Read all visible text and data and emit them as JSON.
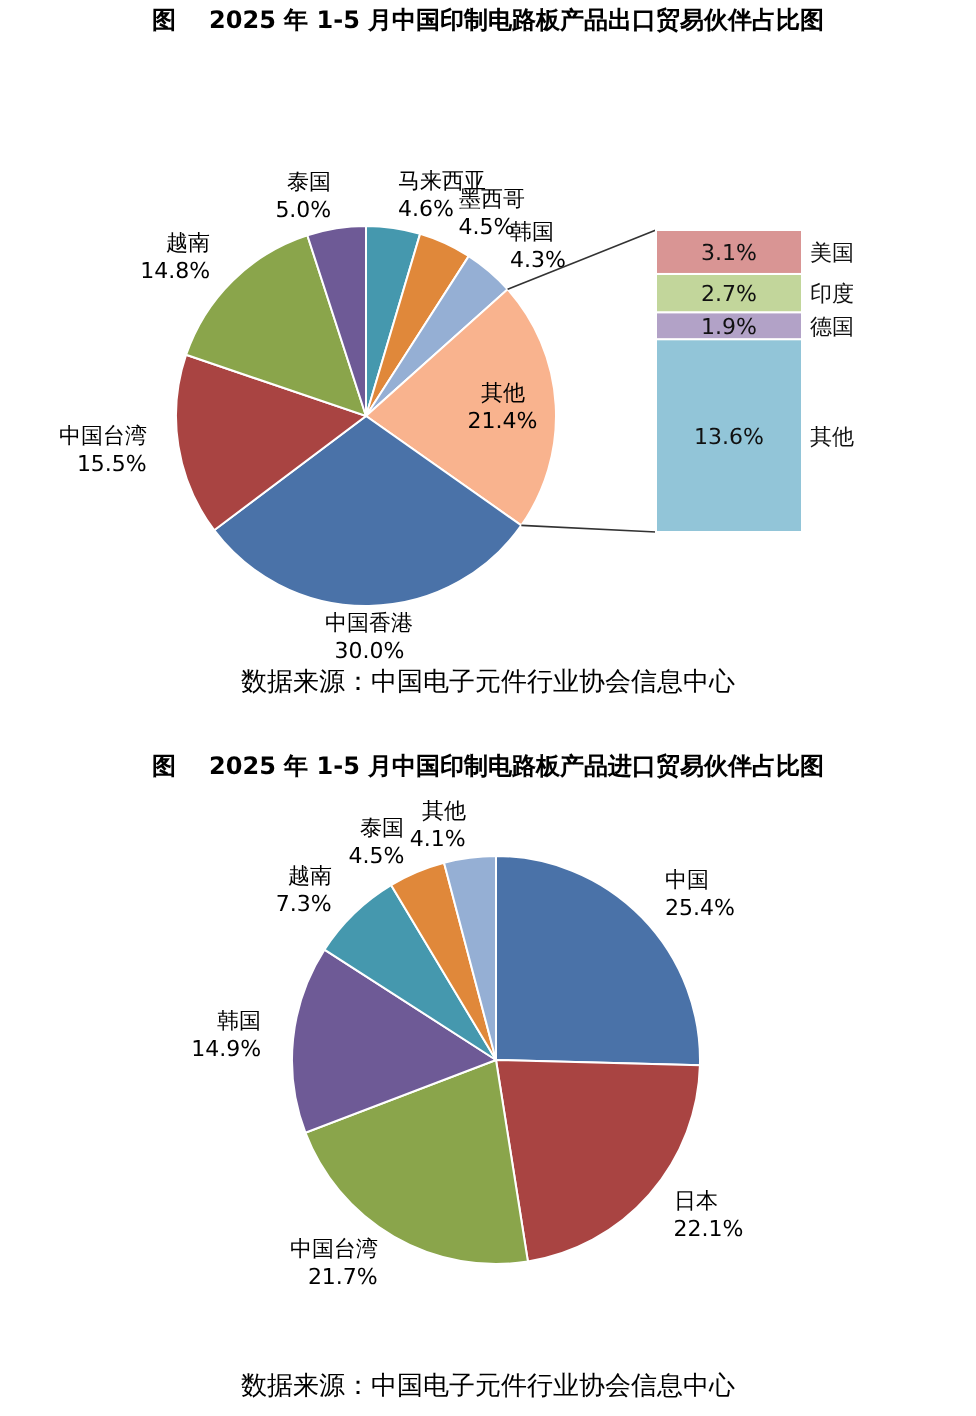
{
  "chart_data": [
    {
      "type": "pie",
      "title": "图    2025 年 1-5 月中国印制电路板产品出口贸易伙伴占比图",
      "annotations": [
        "数据来源：中国电子元件行业协会信息中心"
      ],
      "categories": [
        "马来西亚",
        "墨西哥",
        "韩国",
        "其他",
        "中国香港",
        "中国台湾",
        "越南",
        "泰国"
      ],
      "values": [
        4.6,
        4.5,
        4.3,
        21.4,
        30.0,
        15.5,
        14.8,
        5.0
      ],
      "value_labels": [
        "4.6%",
        "4.5%",
        "4.3%",
        "21.4%",
        "30.0%",
        "15.5%",
        "14.8%",
        "5.0%"
      ],
      "colors": [
        "#4598ae",
        "#e0883a",
        "#95afd4",
        "#f9b38e",
        "#4a72a8",
        "#a94442",
        "#8aa54b",
        "#6e5a96"
      ]
    },
    {
      "type": "bar",
      "stacked": true,
      "categories": [
        null
      ],
      "series": [
        {
          "name": "其他",
          "color": "#92c5d8",
          "values": [
            13.6
          ],
          "value_labels": [
            "13.6%"
          ]
        },
        {
          "name": "德国",
          "color": "#b2a2c7",
          "values": [
            1.9
          ],
          "value_labels": [
            "1.9%"
          ]
        },
        {
          "name": "印度",
          "color": "#c2d69b",
          "values": [
            2.7
          ],
          "value_labels": [
            "2.7%"
          ]
        },
        {
          "name": "美国",
          "color": "#d99594",
          "values": [
            3.1
          ],
          "value_labels": [
            "3.1%"
          ]
        }
      ]
    },
    {
      "type": "pie",
      "title": "图    2025 年 1-5 月中国印制电路板产品进口贸易伙伴占比图",
      "annotations": [
        "数据来源：中国电子元件行业协会信息中心"
      ],
      "categories": [
        "中国",
        "日本",
        "中国台湾",
        "韩国",
        "越南",
        "泰国",
        "其他"
      ],
      "values": [
        25.4,
        22.1,
        21.7,
        14.9,
        7.3,
        4.5,
        4.1
      ],
      "value_labels": [
        "25.4%",
        "22.1%",
        "21.7%",
        "14.9%",
        "7.3%",
        "4.5%",
        "4.1%"
      ],
      "colors": [
        "#4a72a8",
        "#a94442",
        "#8aa54b",
        "#6e5a96",
        "#4598ae",
        "#e0883a",
        "#95afd4"
      ]
    }
  ]
}
